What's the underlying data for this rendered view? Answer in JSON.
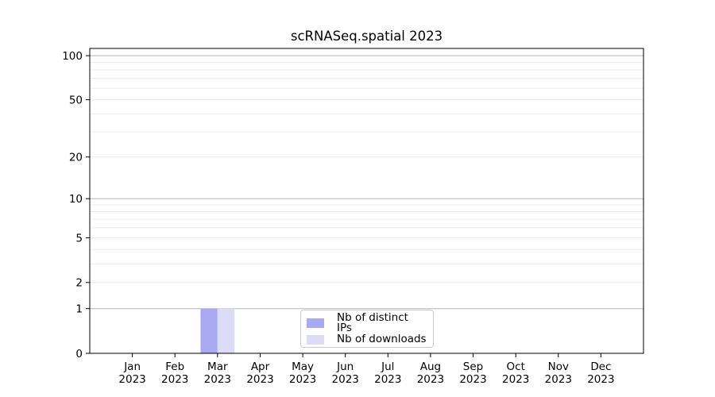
{
  "chart_data": {
    "type": "bar",
    "title": "scRNASeq.spatial 2023",
    "x_tick_months": [
      "Jan",
      "Feb",
      "Mar",
      "Apr",
      "May",
      "Jun",
      "Jul",
      "Aug",
      "Sep",
      "Oct",
      "Nov",
      "Dec"
    ],
    "x_tick_year": "2023",
    "series": [
      {
        "name": "Nb of distinct IPs",
        "color": "#a9a9f1",
        "values": [
          0,
          0,
          1,
          0,
          0,
          0,
          0,
          0,
          0,
          0,
          0,
          0
        ]
      },
      {
        "name": "Nb of downloads",
        "color": "#dcdcf8",
        "values": [
          0,
          0,
          1,
          0,
          0,
          0,
          0,
          0,
          0,
          0,
          0,
          0
        ]
      }
    ],
    "yscale": "log1p",
    "ylim": [
      0,
      112
    ],
    "y_ticks": [
      0,
      1,
      2,
      5,
      10,
      20,
      50,
      100
    ],
    "grid": {
      "major_lines": [
        1,
        10,
        100
      ],
      "minor_lines": [
        2,
        3,
        4,
        5,
        6,
        7,
        8,
        9,
        20,
        30,
        40,
        50,
        60,
        70,
        80,
        90
      ],
      "major_color": "#b5b5b5",
      "minor_color": "#ececec"
    },
    "legend": {
      "position": "lower center"
    },
    "axis_color": "#000000",
    "background": "#ffffff"
  }
}
